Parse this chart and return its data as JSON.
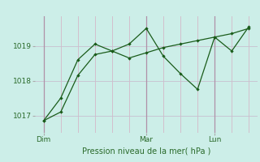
{
  "title": "",
  "xlabel": "Pression niveau de la mer( hPa )",
  "bg_color": "#cceee8",
  "line_color": "#1a5c1a",
  "grid_color_v": "#d4b8c8",
  "grid_color_h": "#c8c0d0",
  "yticks": [
    1017,
    1018,
    1019
  ],
  "ylim": [
    1016.5,
    1019.85
  ],
  "day_labels": [
    "Dim",
    "Mar",
    "Lun"
  ],
  "day_positions": [
    0.0,
    12.0,
    20.0
  ],
  "xlim": [
    -1,
    25
  ],
  "line1_x": [
    0,
    2,
    4,
    6,
    8,
    10,
    12,
    14,
    16,
    18,
    20,
    22,
    24
  ],
  "line1_y": [
    1016.85,
    1017.1,
    1018.15,
    1018.75,
    1018.85,
    1018.65,
    1018.8,
    1018.95,
    1019.05,
    1019.15,
    1019.25,
    1019.35,
    1019.5
  ],
  "line2_x": [
    0,
    2,
    4,
    6,
    8,
    10,
    12,
    14,
    16,
    18,
    20,
    22,
    24
  ],
  "line2_y": [
    1016.85,
    1017.5,
    1018.6,
    1019.05,
    1018.85,
    1019.05,
    1019.5,
    1018.7,
    1018.2,
    1017.75,
    1019.25,
    1018.85,
    1019.55
  ],
  "tick_fontsize": 6.5,
  "xlabel_fontsize": 7,
  "tick_color": "#2a6a2a",
  "xlabel_color": "#2a6a2a"
}
